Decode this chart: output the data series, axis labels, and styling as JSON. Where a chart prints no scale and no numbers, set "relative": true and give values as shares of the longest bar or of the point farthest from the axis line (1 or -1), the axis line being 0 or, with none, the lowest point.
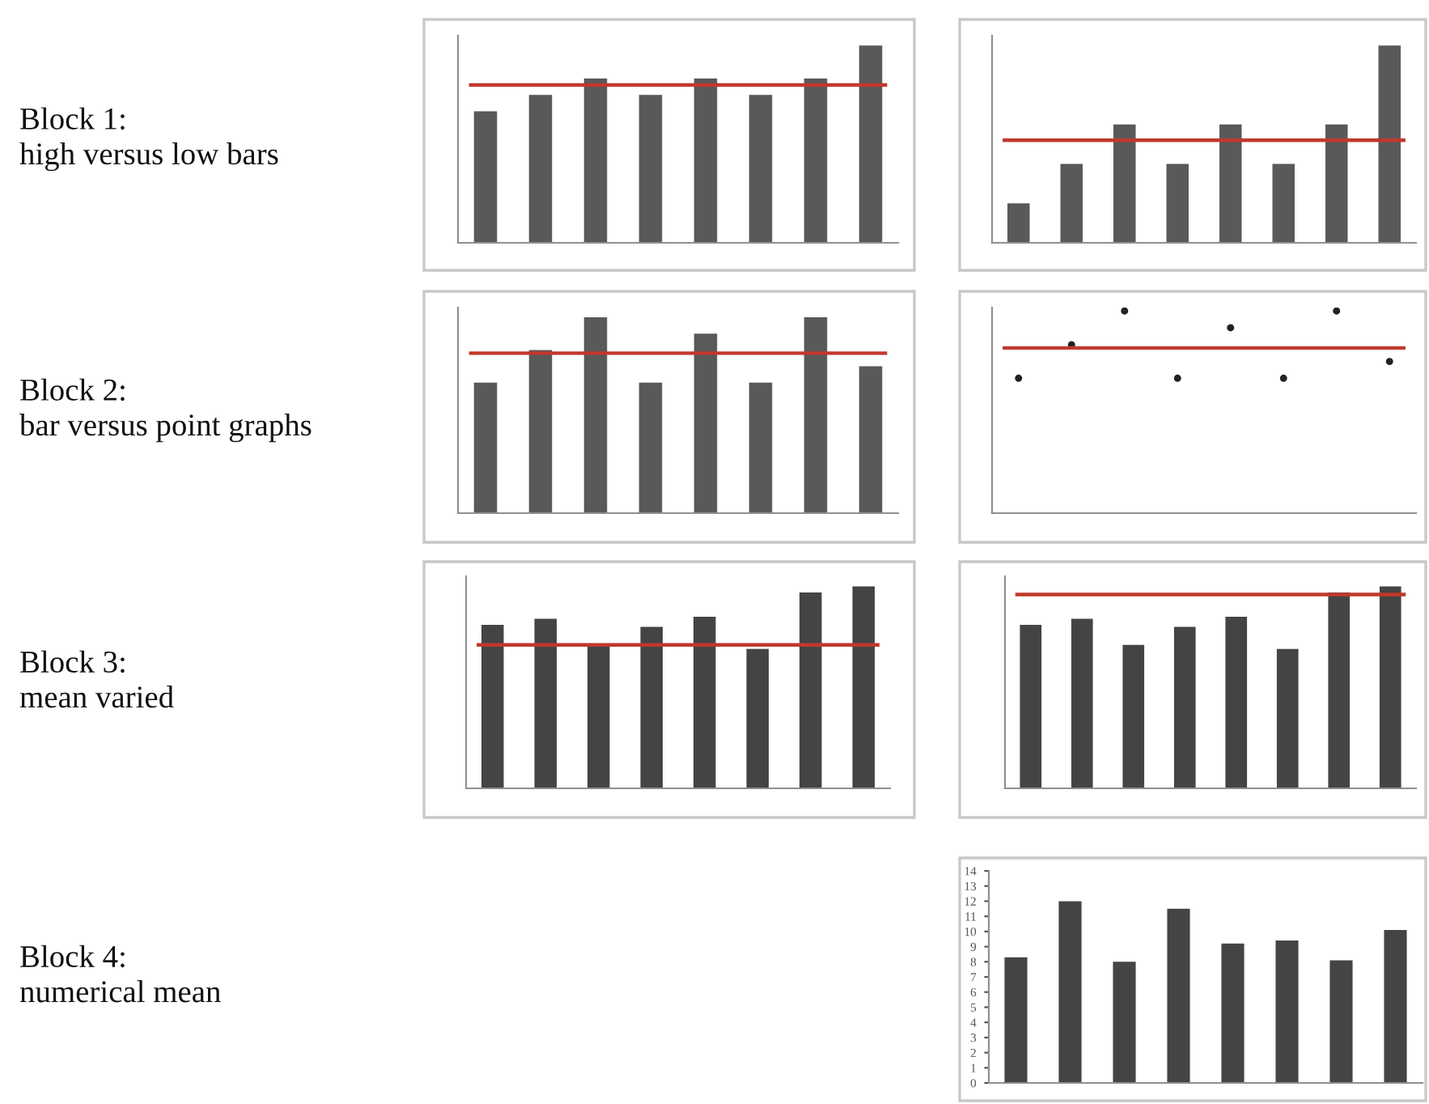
{
  "chart_data": [
    {
      "type": "bar",
      "relative": true,
      "tick_labels": false,
      "categories": [
        null,
        null,
        null,
        null,
        null,
        null,
        null,
        null
      ],
      "color": "#595959",
      "values": [
        0.667,
        0.75,
        0.833,
        0.75,
        0.833,
        0.75,
        0.833,
        1
      ],
      "ref_lines": [
        {
          "axis": "y",
          "value": 0.8,
          "color": "#c0392b"
        }
      ],
      "annotations": [
        "Block 1:\nhigh versus low bars"
      ]
    },
    {
      "type": "bar",
      "relative": true,
      "tick_labels": false,
      "categories": [
        null,
        null,
        null,
        null,
        null,
        null,
        null,
        null
      ],
      "color": "#595959",
      "values": [
        0.2,
        0.4,
        0.6,
        0.4,
        0.6,
        0.4,
        0.6,
        1
      ],
      "ref_lines": [
        {
          "axis": "y",
          "value": 0.52,
          "color": "#c0392b"
        }
      ]
    },
    {
      "type": "bar",
      "relative": true,
      "tick_labels": false,
      "categories": [
        null,
        null,
        null,
        null,
        null,
        null,
        null,
        null
      ],
      "color": "#595959",
      "values": [
        0.667,
        0.833,
        1,
        0.667,
        0.917,
        0.667,
        1,
        0.75
      ],
      "ref_lines": [
        {
          "axis": "y",
          "value": 0.817,
          "color": "#c0392b"
        }
      ],
      "annotations": [
        "Block 2:\nbar versus point graphs"
      ]
    },
    {
      "type": "scatter",
      "relative": true,
      "tick_labels": false,
      "marker": "circle",
      "categories": [
        null,
        null,
        null,
        null,
        null,
        null,
        null,
        null
      ],
      "color": "#222222",
      "values": [
        0.667,
        0.833,
        1,
        0.667,
        0.917,
        0.667,
        1,
        0.75
      ],
      "ref_lines": [
        {
          "axis": "y",
          "value": 0.817,
          "color": "#c0392b"
        }
      ]
    },
    {
      "type": "bar",
      "relative": true,
      "tick_labels": false,
      "categories": [
        null,
        null,
        null,
        null,
        null,
        null,
        null,
        null
      ],
      "color": "#444444",
      "values": [
        0.81,
        0.84,
        0.71,
        0.8,
        0.85,
        0.69,
        0.97,
        1
      ],
      "ref_lines": [
        {
          "axis": "y",
          "value": 0.71,
          "color": "#c0392b"
        }
      ],
      "annotations": [
        "Block 3:\nmean varied"
      ]
    },
    {
      "type": "bar",
      "relative": true,
      "tick_labels": false,
      "categories": [
        null,
        null,
        null,
        null,
        null,
        null,
        null,
        null
      ],
      "color": "#444444",
      "values": [
        0.81,
        0.84,
        0.71,
        0.8,
        0.85,
        0.69,
        0.97,
        1
      ],
      "ref_lines": [
        {
          "axis": "y",
          "value": 0.96,
          "color": "#c0392b"
        }
      ]
    },
    {
      "type": "bar",
      "tick_labels": "y",
      "categories": [
        null,
        null,
        null,
        null,
        null,
        null,
        null,
        null
      ],
      "color": "#444444",
      "values": [
        8.3,
        12,
        8,
        11.5,
        9.2,
        9.4,
        8.1,
        10.1
      ],
      "ylim": [
        0,
        14
      ],
      "yticks": [
        0,
        1,
        2,
        3,
        4,
        5,
        6,
        7,
        8,
        9,
        10,
        11,
        12,
        13,
        14
      ],
      "annotations": [
        "Block 4:\nnumerical mean"
      ]
    }
  ]
}
